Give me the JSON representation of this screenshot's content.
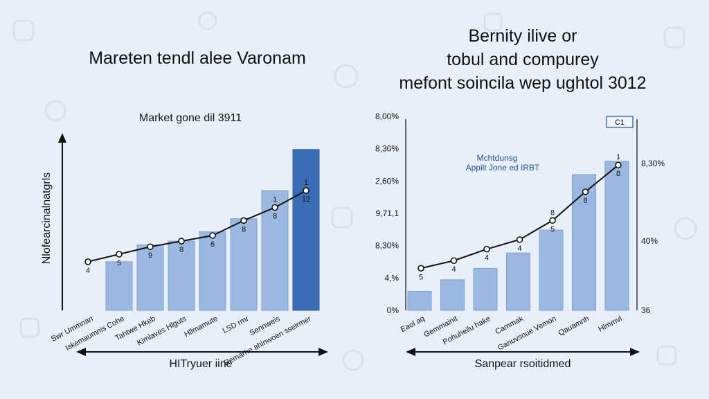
{
  "colors": {
    "background": "#e8eff8",
    "bar_light": "#9ab8e0",
    "bar_dark": "#3b6db5",
    "line": "#111111"
  },
  "chart_data": [
    {
      "type": "bar",
      "title": "Mareten tendl alee Varonam",
      "subtitle": "Market gone dil 3911",
      "ylabel": "Nlofearcinalnatgrls",
      "xlabel": "HITryuer iine",
      "categories": [
        "Swr Ummnan",
        "Iskemaumnis Cohe",
        "Tahtwe Hkeb",
        "Kimlaves Hlguts",
        "Hllmamute",
        "LSD rmr",
        "Sennweis",
        "Remarhe ahinwoen sseirmer"
      ],
      "values": [
        null,
        26,
        35,
        37,
        42,
        49,
        64,
        86
      ],
      "line_values": [
        26,
        30,
        34,
        37,
        40,
        48,
        55,
        64
      ],
      "point_labels": [
        "4",
        "5",
        "9",
        "8",
        "6",
        "8",
        "8",
        "12"
      ],
      "peak_markers": [
        "",
        "",
        "",
        "",
        "",
        "",
        "1",
        "1"
      ],
      "ylim": [
        0,
        100
      ]
    },
    {
      "type": "bar",
      "title": "Bernity ilive or tobul and compurey mefont soincila wep ughtol 3012",
      "xlabel": "Sanpear rsoitidmed",
      "left_ticks": [
        "0%",
        "4,%",
        "8,30%",
        "9,71,1",
        "2,60%",
        "8,30%",
        "8,00%"
      ],
      "right_ticks": [
        "36",
        "40%",
        "8,30%"
      ],
      "categories": [
        "Eaol aq",
        "Gemmainit",
        "Pohuheilu hake",
        "Cammak",
        "Ganuvsoue Vemon",
        "Qauamnh",
        "Hlmmvl"
      ],
      "values": [
        10,
        16,
        22,
        30,
        42,
        71,
        78
      ],
      "line_values": [
        22,
        26,
        32,
        37,
        47,
        62,
        76
      ],
      "point_labels": [
        "5",
        "4",
        "4",
        "4",
        "5",
        "8",
        "8"
      ],
      "peak_markers": [
        "",
        "",
        "",
        "",
        "8",
        "",
        "1"
      ],
      "annotation": [
        "Mchtdunsg",
        "Appilt Jone ed IRBT"
      ],
      "box_label": "C1",
      "ylim": [
        0,
        100
      ]
    }
  ]
}
